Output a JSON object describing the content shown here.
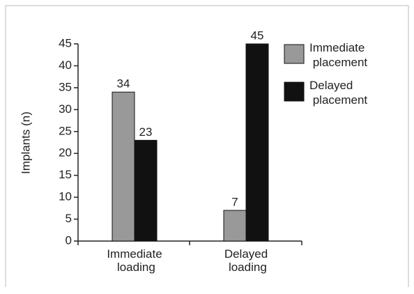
{
  "chart_data": {
    "type": "bar",
    "y_label": "Implants (n)",
    "categories": [
      "Immediate loading",
      "Delayed loading"
    ],
    "series": [
      {
        "name": "Immediate placement",
        "color": "#999999",
        "values": [
          34,
          7
        ]
      },
      {
        "name": "Delayed placement",
        "color": "#111111",
        "values": [
          23,
          45
        ]
      }
    ],
    "ylim": [
      0,
      45
    ],
    "yticks": [
      0,
      5,
      10,
      15,
      20,
      25,
      30,
      35,
      40,
      45
    ],
    "legend": "right",
    "grid": false
  }
}
